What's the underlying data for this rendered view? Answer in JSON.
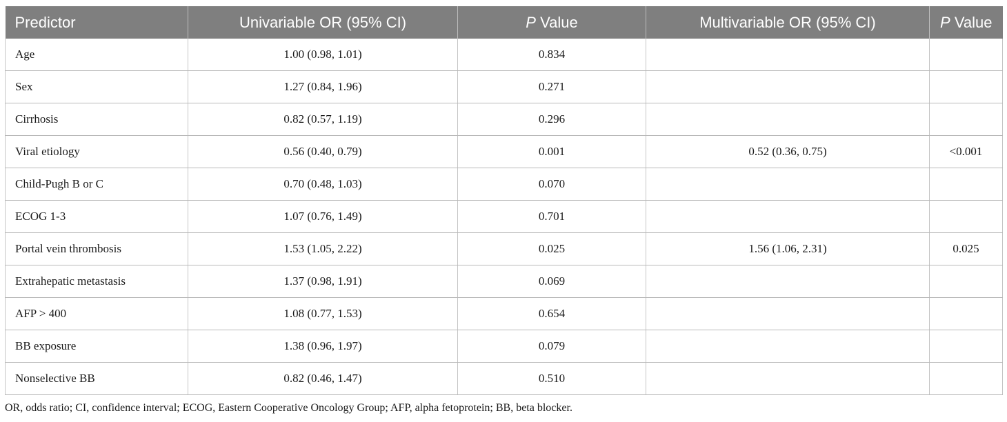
{
  "table": {
    "headers": {
      "predictor": "Predictor",
      "univariable_or": "Univariable OR (95% CI)",
      "p_value_1_ital": "P",
      "p_value_1_rest": " Value",
      "multivariable_or": "Multivariable OR (95% CI)",
      "p_value_2_ital": "P",
      "p_value_2_rest": " Value"
    },
    "rows": [
      {
        "predictor": "Age",
        "uni_or": "1.00 (0.98, 1.01)",
        "uni_p": "0.834",
        "multi_or": "",
        "multi_p": ""
      },
      {
        "predictor": "Sex",
        "uni_or": "1.27 (0.84, 1.96)",
        "uni_p": "0.271",
        "multi_or": "",
        "multi_p": ""
      },
      {
        "predictor": "Cirrhosis",
        "uni_or": "0.82 (0.57, 1.19)",
        "uni_p": "0.296",
        "multi_or": "",
        "multi_p": ""
      },
      {
        "predictor": "Viral etiology",
        "uni_or": "0.56 (0.40, 0.79)",
        "uni_p": "0.001",
        "multi_or": "0.52 (0.36, 0.75)",
        "multi_p": "<0.001"
      },
      {
        "predictor": "Child-Pugh B or C",
        "uni_or": "0.70 (0.48, 1.03)",
        "uni_p": "0.070",
        "multi_or": "",
        "multi_p": ""
      },
      {
        "predictor": "ECOG 1-3",
        "uni_or": "1.07 (0.76, 1.49)",
        "uni_p": "0.701",
        "multi_or": "",
        "multi_p": ""
      },
      {
        "predictor": "Portal vein thrombosis",
        "uni_or": "1.53 (1.05, 2.22)",
        "uni_p": "0.025",
        "multi_or": "1.56 (1.06, 2.31)",
        "multi_p": "0.025"
      },
      {
        "predictor": "Extrahepatic metastasis",
        "uni_or": "1.37 (0.98, 1.91)",
        "uni_p": "0.069",
        "multi_or": "",
        "multi_p": ""
      },
      {
        "predictor": "AFP > 400",
        "uni_or": "1.08 (0.77, 1.53)",
        "uni_p": "0.654",
        "multi_or": "",
        "multi_p": ""
      },
      {
        "predictor": "BB exposure",
        "uni_or": "1.38 (0.96, 1.97)",
        "uni_p": "0.079",
        "multi_or": "",
        "multi_p": ""
      },
      {
        "predictor": "Nonselective BB",
        "uni_or": "0.82 (0.46, 1.47)",
        "uni_p": "0.510",
        "multi_or": "",
        "multi_p": ""
      }
    ]
  },
  "footnote": "OR, odds ratio; CI, confidence interval; ECOG, Eastern Cooperative Oncology Group; AFP, alpha fetoprotein; BB, beta blocker.",
  "colors": {
    "header_bg": "#7f7f7f",
    "header_text": "#ffffff",
    "grid": "#b8b8b8",
    "text": "#1a1a1a"
  }
}
